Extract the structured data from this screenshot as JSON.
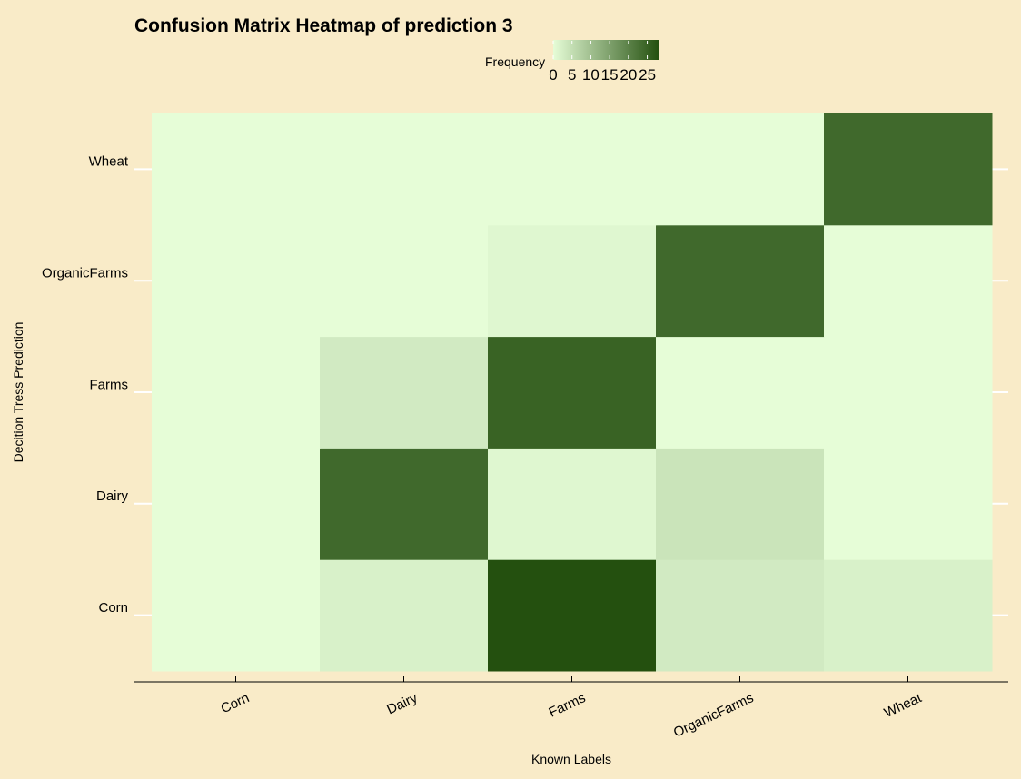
{
  "chart_data": {
    "type": "heatmap",
    "title": "Confusion Matrix Heatmap of prediction 3",
    "xlabel": "Known Labels",
    "ylabel": "Decition Tress Prediction",
    "x_categories": [
      "Corn",
      "Dairy",
      "Farms",
      "OrganicFarms",
      "Wheat"
    ],
    "y_categories": [
      "Corn",
      "Dairy",
      "Farms",
      "OrganicFarms",
      "Wheat"
    ],
    "z": [
      [
        0,
        2,
        28,
        3,
        2
      ],
      [
        0,
        24,
        1,
        4,
        0
      ],
      [
        0,
        3,
        25,
        0,
        0
      ],
      [
        0,
        0,
        1,
        24,
        0
      ],
      [
        0,
        0,
        0,
        0,
        24
      ]
    ],
    "z_note_rows_are_y_categories_cols_are_x_categories": "",
    "legend": {
      "title": "Frequency",
      "ticks": [
        0,
        5,
        10,
        15,
        20,
        25
      ],
      "placement": "top"
    },
    "zlim": [
      0,
      28
    ],
    "colors": {
      "background": "#f9ebc8",
      "low": "#e6fdd7",
      "high": "#24500f",
      "grid": "#ffffff"
    },
    "grid": true
  }
}
